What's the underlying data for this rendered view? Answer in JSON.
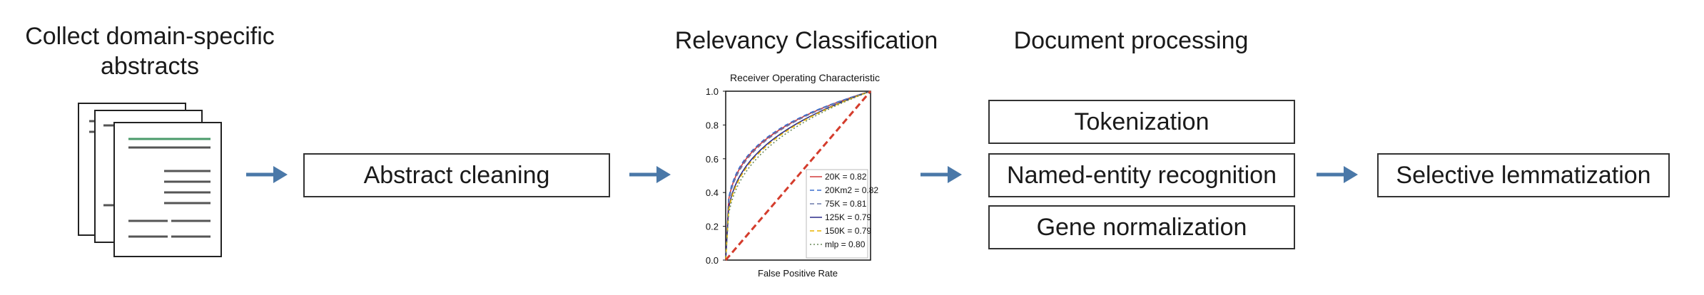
{
  "stages": {
    "collect": {
      "title_line1": "Collect domain-specific",
      "title_line2": "abstracts"
    },
    "cleaning": {
      "label": "Abstract cleaning"
    },
    "relevancy": {
      "title": "Relevancy Classification"
    },
    "processing": {
      "title": "Document processing",
      "steps": [
        "Tokenization",
        "Named-entity recognition",
        "Gene normalization"
      ]
    },
    "lemmatization": {
      "label": "Selective lemmatization"
    }
  },
  "colors": {
    "arrow": "#4a78a8",
    "doc_accent": "#4a9a6a"
  },
  "chart_data": {
    "type": "line",
    "title": "Receiver Operating Characteristic",
    "xlabel": "False Positive Rate",
    "ylabel": "",
    "xlim": [
      0,
      1
    ],
    "ylim": [
      0,
      1
    ],
    "yticks": [
      "0.0",
      "0.2",
      "0.4",
      "0.6",
      "0.8",
      "1.0"
    ],
    "legend_position": "bottom-right",
    "series": [
      {
        "name": "20K = 0.82",
        "color": "#d23c3c",
        "dash": "",
        "power": 0.262
      },
      {
        "name": "20Km2 = 0.82",
        "color": "#3a6fcf",
        "dash": "6,4",
        "power": 0.255
      },
      {
        "name": "75K = 0.81",
        "color": "#6a7aaa",
        "dash": "6,4",
        "power": 0.27
      },
      {
        "name": "125K = 0.79",
        "color": "#2a2a8a",
        "dash": "",
        "power": 0.3
      },
      {
        "name": "150K = 0.79",
        "color": "#e8b400",
        "dash": "6,4",
        "power": 0.31
      },
      {
        "name": "mlp = 0.80",
        "color": "#6a8a5a",
        "dash": "2,3",
        "power": 0.33
      }
    ],
    "diagonal_color": "#d43c2c"
  }
}
